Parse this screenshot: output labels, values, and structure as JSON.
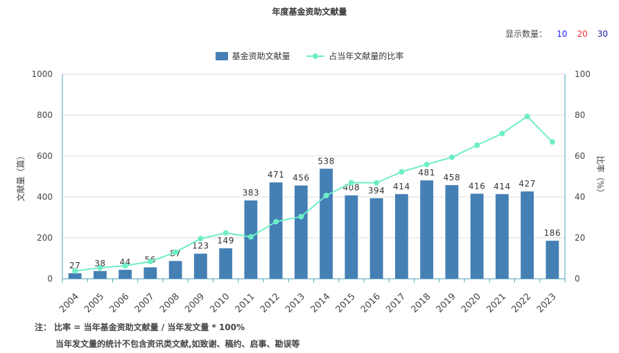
{
  "header": {
    "title": "年度基金资助文献量",
    "display_label": "显示数量：",
    "display_options": [
      "10",
      "20",
      "30"
    ]
  },
  "colors": {
    "bar": "#4580b5",
    "line": "#6eeec8",
    "opt_10": "#1a1aff",
    "opt_20": "#ff2a2a",
    "opt_30": "#1a1a9a"
  },
  "notes": {
    "line1": "注： 比率 = 当年基金资助文献量 / 当年发文量 * 100%",
    "line2": "当年发文量的统计不包含资讯类文献,如致谢、稿约、启事、勘误等"
  },
  "chart_data": {
    "type": "bar",
    "categories": [
      "2004",
      "2005",
      "2006",
      "2007",
      "2008",
      "2009",
      "2010",
      "2011",
      "2012",
      "2013",
      "2014",
      "2015",
      "2016",
      "2017",
      "2018",
      "2019",
      "2020",
      "2021",
      "2022",
      "2023"
    ],
    "series": [
      {
        "name": "基金资助文献量",
        "type": "bar",
        "axis": "left",
        "values": [
          27,
          38,
          44,
          56,
          87,
          123,
          149,
          383,
          471,
          456,
          538,
          408,
          394,
          414,
          481,
          458,
          416,
          414,
          427,
          186
        ]
      },
      {
        "name": "占当年文献量的比率",
        "type": "line",
        "axis": "right",
        "values": [
          3.8,
          5.4,
          6.4,
          8.4,
          13.0,
          19.6,
          22.4,
          20.5,
          27.9,
          30.4,
          40.7,
          47.0,
          46.9,
          52.3,
          55.9,
          59.4,
          65.3,
          71.0,
          79.4,
          66.9
        ]
      }
    ],
    "ylabel": "文献量（篇）",
    "ylabel2": "比率（%）",
    "ylim": [
      0,
      1000
    ],
    "y2lim": [
      0,
      100
    ],
    "yticks": [
      0,
      200,
      400,
      600,
      800,
      1000
    ],
    "y2ticks": [
      0,
      20,
      40,
      60,
      80,
      100
    ],
    "grid": true,
    "legend_position": "top"
  }
}
